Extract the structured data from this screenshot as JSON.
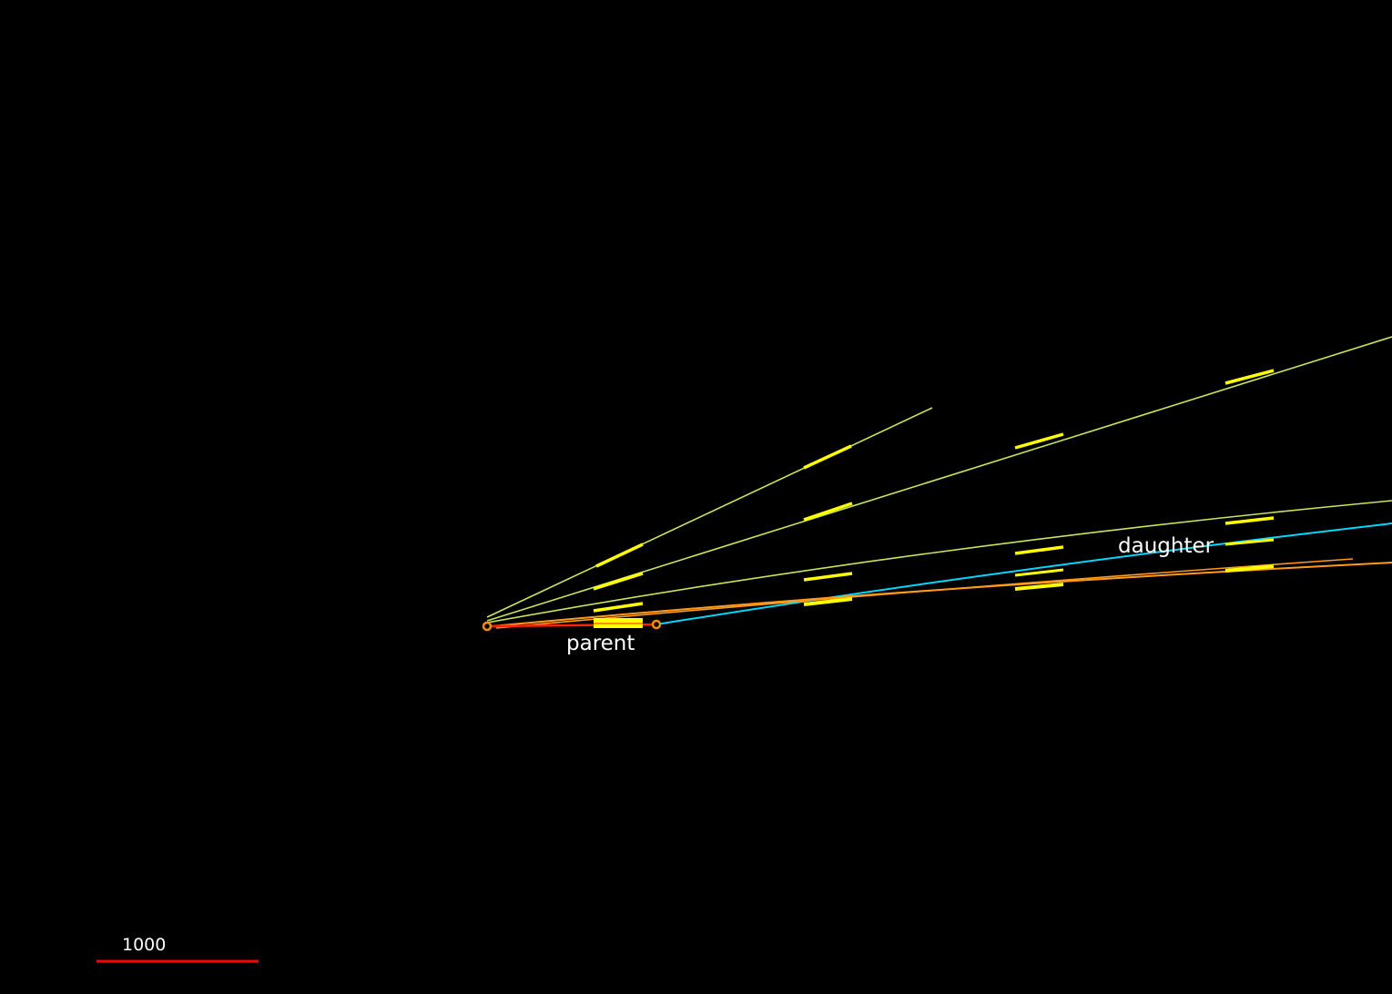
{
  "event_display": {
    "labels": {
      "parent": "parent",
      "daughter": "daughter"
    },
    "scale_bar": {
      "label": "1000",
      "color": "#ff0000"
    },
    "colors": {
      "background": "#000000",
      "track_line": "#c8e65a",
      "hit": "#ffff00",
      "parent_track": "#ff2000",
      "daughter_track": "#00d8ff",
      "orange_track": "#ff9a1a",
      "vertex": "#ff8c00"
    }
  }
}
